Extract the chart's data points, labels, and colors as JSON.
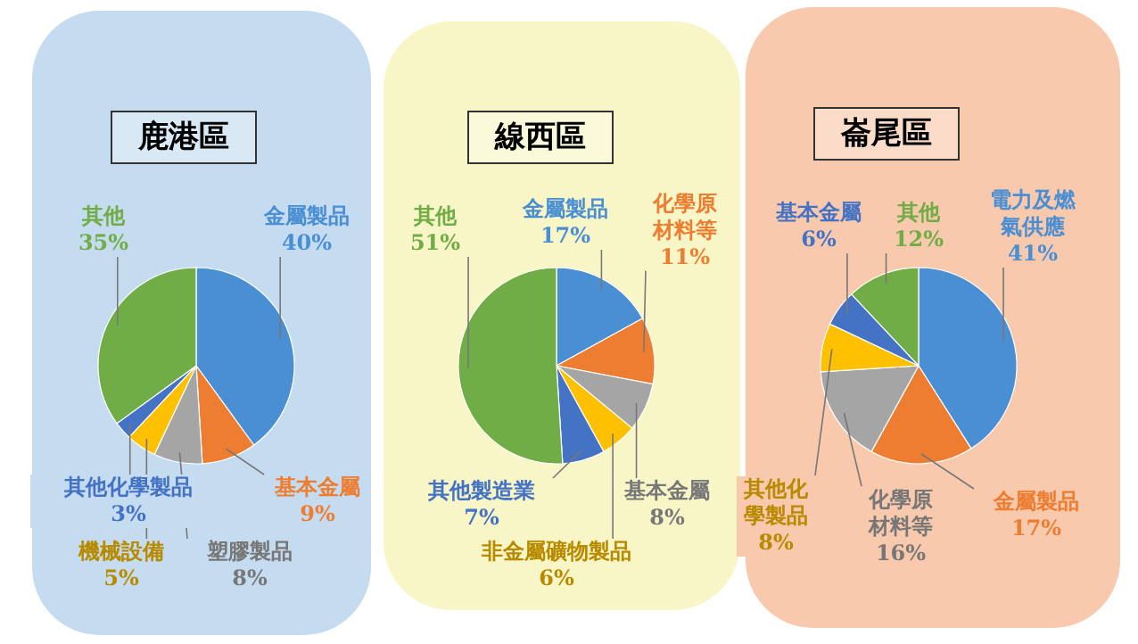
{
  "chart_data": [
    {
      "type": "pie",
      "title": "鹿港區",
      "categories": [
        "金屬製品",
        "基本金屬",
        "塑膠製品",
        "機械設備",
        "其他化學製品",
        "其他"
      ],
      "values": [
        40,
        9,
        8,
        5,
        3,
        35
      ],
      "value_labels": [
        "40%",
        "9%",
        "8%",
        "5%",
        "3%",
        "35%"
      ],
      "colors": [
        "#4a8fd4",
        "#ed7d31",
        "#a5a5a5",
        "#ffc000",
        "#4472c4",
        "#70ad47"
      ]
    },
    {
      "type": "pie",
      "title": "線西區",
      "categories": [
        "金屬製品",
        "化學原材料等",
        "基本金屬",
        "非金屬礦物製品",
        "其他製造業",
        "其他"
      ],
      "values": [
        17,
        11,
        8,
        6,
        7,
        51
      ],
      "value_labels": [
        "17%",
        "11%",
        "8%",
        "6%",
        "7%",
        "51%"
      ],
      "colors": [
        "#4a8fd4",
        "#ed7d31",
        "#a5a5a5",
        "#ffc000",
        "#4472c4",
        "#70ad47"
      ]
    },
    {
      "type": "pie",
      "title": "崙尾區",
      "categories": [
        "電力及燃氣供應",
        "金屬製品",
        "化學原材料等",
        "其他化學製品",
        "基本金屬",
        "其他"
      ],
      "values": [
        41,
        17,
        16,
        8,
        6,
        12
      ],
      "value_labels": [
        "41%",
        "17%",
        "16%",
        "8%",
        "6%",
        "12%"
      ],
      "colors": [
        "#4a8fd4",
        "#ed7d31",
        "#a5a5a5",
        "#ffc000",
        "#4472c4",
        "#70ad47"
      ]
    }
  ]
}
